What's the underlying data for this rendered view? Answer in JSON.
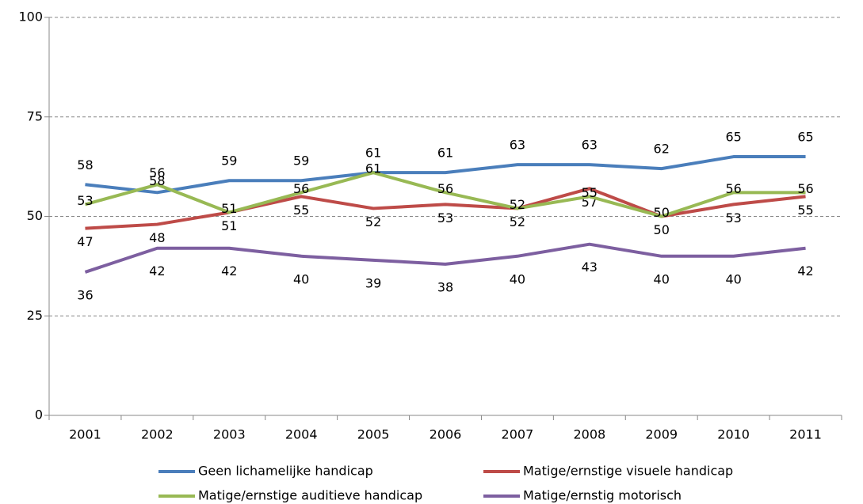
{
  "chart_data": {
    "type": "line",
    "categories": [
      "2001",
      "2002",
      "2003",
      "2004",
      "2005",
      "2006",
      "2007",
      "2008",
      "2009",
      "2010",
      "2011"
    ],
    "series": [
      {
        "name": "Geen lichamelijke handicap",
        "color": "#4a7ebb",
        "values": [
          58,
          56,
          59,
          59,
          61,
          61,
          63,
          63,
          62,
          65,
          65
        ]
      },
      {
        "name": "Matige/ernstige visuele handicap",
        "color": "#be4b48",
        "values": [
          47,
          48,
          51,
          55,
          52,
          53,
          52,
          57,
          50,
          53,
          55
        ]
      },
      {
        "name": "Matige/ernstige auditieve handicap",
        "color": "#98b954",
        "values": [
          53,
          58,
          51,
          56,
          61,
          56,
          52,
          55,
          50,
          56,
          56
        ]
      },
      {
        "name": "Matige/ernstig motorisch",
        "color": "#7d5fa0",
        "values": [
          36,
          42,
          42,
          40,
          39,
          38,
          40,
          43,
          40,
          40,
          42
        ]
      }
    ],
    "ylim": [
      0,
      100
    ],
    "yticks": [
      0,
      25,
      50,
      75,
      100
    ],
    "grid": true,
    "legend": "bottom"
  }
}
